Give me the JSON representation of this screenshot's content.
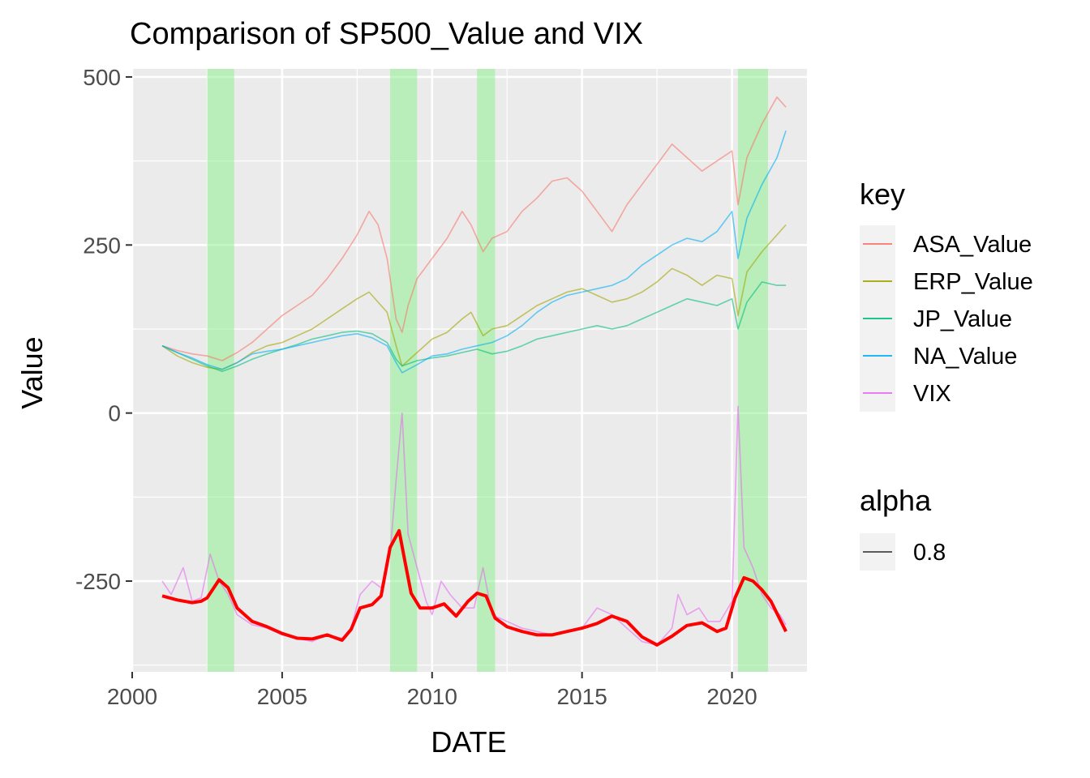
{
  "chart_data": {
    "type": "line",
    "title": "Comparison of SP500_Value and VIX",
    "xlabel": "DATE",
    "ylabel": "Value",
    "xlim": [
      2000.0,
      2022.5
    ],
    "ylim": [
      -385,
      512
    ],
    "x_ticks": [
      2000,
      2005,
      2010,
      2015,
      2020
    ],
    "x_tick_labels": [
      "2000",
      "2005",
      "2010",
      "2015",
      "2020"
    ],
    "y_ticks": [
      -250,
      0,
      250,
      500
    ],
    "y_tick_labels": [
      "-250",
      "0",
      "250",
      "500"
    ],
    "grid": true,
    "panel_background": "#ebebeb",
    "shaded_periods": [
      {
        "start": 2002.5,
        "end": 2003.4
      },
      {
        "start": 2008.6,
        "end": 2009.5
      },
      {
        "start": 2011.5,
        "end": 2012.1
      },
      {
        "start": 2020.2,
        "end": 2021.2
      }
    ],
    "shade_color": "#90ee90",
    "series": [
      {
        "name": "ASA_Value",
        "color": "#F8766D",
        "x": [
          2001.0,
          2001.5,
          2002.0,
          2002.5,
          2003.0,
          2003.5,
          2004.0,
          2004.5,
          2005.0,
          2005.5,
          2006.0,
          2006.5,
          2007.0,
          2007.5,
          2007.9,
          2008.2,
          2008.5,
          2008.8,
          2009.0,
          2009.2,
          2009.5,
          2010.0,
          2010.5,
          2011.0,
          2011.3,
          2011.7,
          2012.0,
          2012.5,
          2013.0,
          2013.5,
          2014.0,
          2014.5,
          2015.0,
          2015.5,
          2016.0,
          2016.5,
          2017.0,
          2017.5,
          2018.0,
          2018.5,
          2019.0,
          2019.5,
          2020.0,
          2020.2,
          2020.5,
          2021.0,
          2021.5,
          2021.8
        ],
        "y": [
          100,
          93,
          88,
          85,
          78,
          90,
          105,
          125,
          145,
          160,
          175,
          200,
          230,
          265,
          300,
          280,
          230,
          140,
          120,
          160,
          200,
          230,
          260,
          300,
          280,
          240,
          260,
          270,
          300,
          320,
          345,
          350,
          330,
          300,
          270,
          310,
          340,
          370,
          400,
          380,
          360,
          375,
          390,
          310,
          380,
          430,
          470,
          455
        ]
      },
      {
        "name": "ERP_Value",
        "color": "#A3A500",
        "x": [
          2001.0,
          2001.5,
          2002.0,
          2002.5,
          2003.0,
          2003.5,
          2004.0,
          2004.5,
          2005.0,
          2005.5,
          2006.0,
          2006.5,
          2007.0,
          2007.5,
          2007.9,
          2008.5,
          2008.8,
          2009.0,
          2009.5,
          2010.0,
          2010.5,
          2011.0,
          2011.3,
          2011.7,
          2012.0,
          2012.5,
          2013.0,
          2013.5,
          2014.0,
          2014.5,
          2015.0,
          2015.5,
          2016.0,
          2016.5,
          2017.0,
          2017.5,
          2018.0,
          2018.5,
          2019.0,
          2019.5,
          2020.0,
          2020.2,
          2020.5,
          2021.0,
          2021.5,
          2021.8
        ],
        "y": [
          100,
          85,
          75,
          68,
          65,
          75,
          90,
          100,
          105,
          115,
          125,
          140,
          155,
          170,
          180,
          150,
          100,
          70,
          90,
          110,
          120,
          140,
          150,
          115,
          125,
          130,
          145,
          160,
          170,
          180,
          185,
          175,
          165,
          170,
          180,
          195,
          215,
          205,
          190,
          205,
          200,
          145,
          210,
          240,
          265,
          280
        ]
      },
      {
        "name": "JP_Value",
        "color": "#00BF7D",
        "x": [
          2001.0,
          2001.5,
          2002.0,
          2002.5,
          2003.0,
          2003.5,
          2004.0,
          2004.5,
          2005.0,
          2005.5,
          2006.0,
          2006.5,
          2007.0,
          2007.5,
          2008.0,
          2008.5,
          2008.8,
          2009.0,
          2009.5,
          2010.0,
          2010.5,
          2011.0,
          2011.5,
          2012.0,
          2012.5,
          2013.0,
          2013.5,
          2014.0,
          2014.5,
          2015.0,
          2015.5,
          2016.0,
          2016.5,
          2017.0,
          2017.5,
          2018.0,
          2018.5,
          2019.0,
          2019.5,
          2020.0,
          2020.2,
          2020.5,
          2021.0,
          2021.5,
          2021.8
        ],
        "y": [
          100,
          90,
          80,
          70,
          62,
          70,
          80,
          88,
          95,
          102,
          110,
          115,
          120,
          122,
          118,
          105,
          80,
          70,
          78,
          82,
          85,
          90,
          95,
          88,
          92,
          100,
          110,
          115,
          120,
          125,
          130,
          125,
          130,
          140,
          150,
          160,
          170,
          165,
          160,
          170,
          125,
          165,
          195,
          190,
          190
        ]
      },
      {
        "name": "NA_Value",
        "color": "#00B0F6",
        "x": [
          2001.0,
          2001.5,
          2002.0,
          2002.5,
          2003.0,
          2003.5,
          2004.0,
          2004.5,
          2005.0,
          2005.5,
          2006.0,
          2006.5,
          2007.0,
          2007.5,
          2008.0,
          2008.5,
          2008.8,
          2009.0,
          2009.5,
          2010.0,
          2010.5,
          2011.0,
          2011.5,
          2012.0,
          2012.5,
          2013.0,
          2013.5,
          2014.0,
          2014.5,
          2015.0,
          2015.5,
          2016.0,
          2016.5,
          2017.0,
          2017.5,
          2018.0,
          2018.5,
          2019.0,
          2019.5,
          2020.0,
          2020.2,
          2020.5,
          2021.0,
          2021.5,
          2021.8
        ],
        "y": [
          100,
          90,
          82,
          72,
          65,
          75,
          88,
          92,
          95,
          100,
          105,
          110,
          115,
          118,
          112,
          100,
          75,
          60,
          72,
          85,
          88,
          95,
          100,
          105,
          115,
          130,
          150,
          165,
          175,
          180,
          185,
          190,
          200,
          220,
          235,
          250,
          260,
          255,
          270,
          300,
          230,
          290,
          340,
          380,
          420
        ]
      },
      {
        "name": "VIX",
        "color": "#E76BF3",
        "x": [
          2001.0,
          2001.3,
          2001.7,
          2002.0,
          2002.3,
          2002.6,
          2002.9,
          2003.2,
          2003.5,
          2004.0,
          2004.5,
          2005.0,
          2005.5,
          2006.0,
          2006.5,
          2007.0,
          2007.3,
          2007.6,
          2008.0,
          2008.3,
          2008.6,
          2008.8,
          2009.0,
          2009.2,
          2009.5,
          2009.8,
          2010.0,
          2010.3,
          2010.6,
          2011.0,
          2011.4,
          2011.7,
          2012.0,
          2012.5,
          2013.0,
          2013.5,
          2014.0,
          2014.5,
          2015.0,
          2015.5,
          2016.0,
          2016.5,
          2017.0,
          2017.5,
          2018.0,
          2018.2,
          2018.5,
          2018.9,
          2019.2,
          2019.6,
          2020.0,
          2020.2,
          2020.4,
          2020.7,
          2021.0,
          2021.3,
          2021.6,
          2021.8
        ],
        "y": [
          -250,
          -270,
          -230,
          -280,
          -275,
          -210,
          -250,
          -270,
          -300,
          -315,
          -320,
          -330,
          -335,
          -340,
          -330,
          -335,
          -320,
          -270,
          -250,
          -260,
          -210,
          -100,
          0,
          -180,
          -230,
          -280,
          -300,
          -250,
          -270,
          -290,
          -290,
          -230,
          -300,
          -310,
          -320,
          -325,
          -330,
          -325,
          -320,
          -290,
          -300,
          -320,
          -340,
          -345,
          -320,
          -270,
          -300,
          -290,
          -310,
          -310,
          -280,
          10,
          -200,
          -230,
          -270,
          -290,
          -300,
          -315
        ]
      },
      {
        "name": "",
        "color": "#FF0000",
        "x": [
          2001.0,
          2001.5,
          2002.0,
          2002.3,
          2002.5,
          2002.9,
          2003.2,
          2003.5,
          2004.0,
          2004.5,
          2005.0,
          2005.5,
          2006.0,
          2006.5,
          2007.0,
          2007.3,
          2007.6,
          2008.0,
          2008.3,
          2008.6,
          2008.9,
          2009.1,
          2009.3,
          2009.6,
          2010.0,
          2010.4,
          2010.8,
          2011.2,
          2011.5,
          2011.8,
          2012.1,
          2012.5,
          2013.0,
          2013.5,
          2014.0,
          2014.5,
          2015.0,
          2015.5,
          2016.0,
          2016.5,
          2017.0,
          2017.5,
          2018.0,
          2018.5,
          2019.0,
          2019.5,
          2019.8,
          2020.1,
          2020.4,
          2020.7,
          2021.0,
          2021.3,
          2021.8
        ],
        "y": [
          -272,
          -278,
          -282,
          -280,
          -275,
          -248,
          -260,
          -290,
          -310,
          -318,
          -328,
          -335,
          -336,
          -330,
          -338,
          -322,
          -290,
          -285,
          -272,
          -200,
          -175,
          -222,
          -268,
          -290,
          -290,
          -284,
          -302,
          -280,
          -268,
          -272,
          -305,
          -318,
          -325,
          -330,
          -330,
          -325,
          -320,
          -313,
          -302,
          -310,
          -333,
          -345,
          -332,
          -316,
          -312,
          -325,
          -320,
          -275,
          -245,
          -250,
          -263,
          -280,
          -325
        ]
      }
    ],
    "legend": {
      "position": "right",
      "key_title": "key",
      "key_entries": [
        {
          "label": "ASA_Value",
          "color": "#F8766D"
        },
        {
          "label": "ERP_Value",
          "color": "#A3A500"
        },
        {
          "label": "JP_Value",
          "color": "#00BF7D"
        },
        {
          "label": "NA_Value",
          "color": "#00B0F6"
        },
        {
          "label": "VIX",
          "color": "#E76BF3"
        }
      ],
      "alpha_title": "alpha",
      "alpha_entries": [
        {
          "label": "0.8",
          "color": "#444444"
        }
      ]
    }
  }
}
